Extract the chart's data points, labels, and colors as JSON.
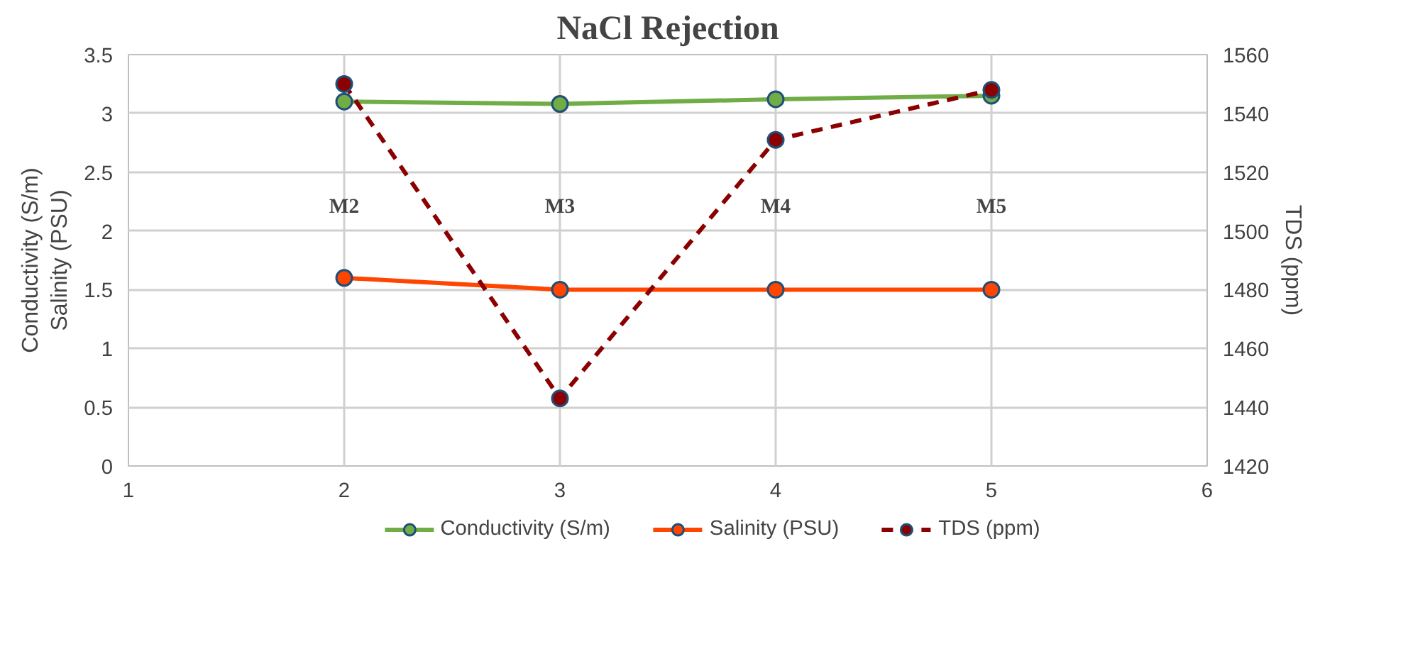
{
  "chart_data": {
    "type": "line",
    "title": "NaCl Rejection",
    "ylabel": "Conductivity (S/m)\nSalinity (PSU)",
    "y2label": "TDS (ppm)",
    "x": [
      2,
      3,
      4,
      5
    ],
    "series": [
      {
        "name": "Conductivity (S/m)",
        "color": "#70ad47",
        "values": [
          3.1,
          3.08,
          3.12,
          3.15
        ]
      },
      {
        "name": "Salinity (PSU)",
        "color": "#ff4500",
        "values": [
          1.6,
          1.5,
          1.5,
          1.5
        ]
      },
      {
        "name": "TDS (ppm)",
        "color": "#8b0000",
        "values": [
          1550,
          1443,
          1531,
          1548
        ],
        "axis": "y2",
        "line_style": "dashed"
      }
    ],
    "xlim": [
      1,
      6
    ],
    "xticks": [
      1,
      2,
      3,
      4,
      5,
      6
    ],
    "ylim": [
      0,
      3.5
    ],
    "yticks": [
      0,
      0.5,
      1,
      1.5,
      2,
      2.5,
      3,
      3.5
    ],
    "y2lim": [
      1420,
      1560
    ],
    "y2ticks": [
      1420,
      1440,
      1460,
      1480,
      1500,
      1520,
      1540,
      1560
    ],
    "annotations": [
      "M2",
      "M3",
      "M4",
      "M5"
    ],
    "grid": true,
    "legend": "bottom",
    "marker": "circle",
    "line_style": "solid"
  }
}
